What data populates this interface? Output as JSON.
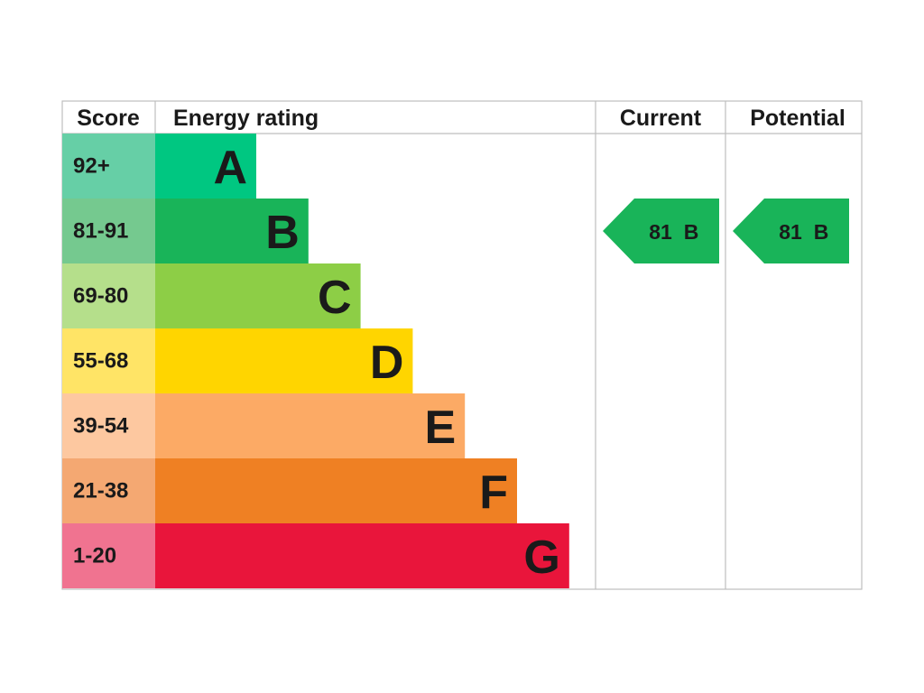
{
  "header": {
    "score": "Score",
    "energy_rating": "Energy rating",
    "current": "Current",
    "potential": "Potential"
  },
  "bands": [
    {
      "score": "92+",
      "rating": "A",
      "color": "#00c781",
      "score_color": "#66cfa6"
    },
    {
      "score": "81-91",
      "rating": "B",
      "color": "#19b459",
      "score_color": "#75c98f"
    },
    {
      "score": "69-80",
      "rating": "C",
      "color": "#8dce46",
      "score_color": "#b5df8b"
    },
    {
      "score": "55-68",
      "rating": "D",
      "color": "#ffd500",
      "score_color": "#ffe466"
    },
    {
      "score": "39-54",
      "rating": "E",
      "color": "#fcaa65",
      "score_color": "#fdc8a0"
    },
    {
      "score": "21-38",
      "rating": "F",
      "color": "#ef8023",
      "score_color": "#f4a872"
    },
    {
      "score": "1-20",
      "rating": "G",
      "color": "#e9153b",
      "score_color": "#f07390"
    }
  ],
  "current": {
    "score": "81",
    "rating": "B"
  },
  "potential": {
    "score": "81",
    "rating": "B"
  }
}
